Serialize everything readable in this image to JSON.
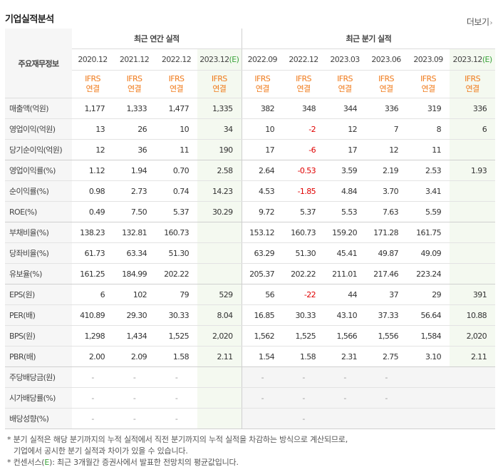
{
  "header": {
    "title": "기업실적분석",
    "more_label": "더보기"
  },
  "table": {
    "corner_label": "주요재무정보",
    "annual_group": "최근 연간 실적",
    "quarter_group": "최근 분기 실적",
    "periods": [
      "2020.12",
      "2021.12",
      "2022.12",
      "2023.12",
      "2022.09",
      "2022.12",
      "2023.03",
      "2023.06",
      "2023.09",
      "2023.12"
    ],
    "estimate_mark": "(E)",
    "ifrs_line1": "IFRS",
    "ifrs_line2": "연결",
    "rows": [
      {
        "label": "매출액(억원)",
        "values": [
          "1,177",
          "1,333",
          "1,477",
          "1,335",
          "382",
          "348",
          "344",
          "336",
          "319",
          "336"
        ]
      },
      {
        "label": "영업이익(억원)",
        "values": [
          "13",
          "26",
          "10",
          "34",
          "10",
          "-2",
          "12",
          "7",
          "8",
          "6"
        ]
      },
      {
        "label": "당기순이익(억원)",
        "values": [
          "12",
          "36",
          "11",
          "190",
          "17",
          "-6",
          "17",
          "12",
          "11",
          ""
        ]
      },
      {
        "label": "영업이익률(%)",
        "values": [
          "1.12",
          "1.94",
          "0.70",
          "2.58",
          "2.64",
          "-0.53",
          "3.59",
          "2.19",
          "2.53",
          "1.93"
        ]
      },
      {
        "label": "순이익률(%)",
        "values": [
          "0.98",
          "2.73",
          "0.74",
          "14.23",
          "4.53",
          "-1.85",
          "4.84",
          "3.70",
          "3.41",
          ""
        ]
      },
      {
        "label": "ROE(%)",
        "values": [
          "0.49",
          "7.50",
          "5.37",
          "30.29",
          "9.72",
          "5.37",
          "5.53",
          "7.63",
          "5.59",
          ""
        ]
      },
      {
        "label": "부채비율(%)",
        "values": [
          "138.23",
          "132.81",
          "160.73",
          "",
          "153.12",
          "160.73",
          "159.20",
          "171.28",
          "161.75",
          ""
        ]
      },
      {
        "label": "당좌비율(%)",
        "values": [
          "61.73",
          "63.34",
          "51.30",
          "",
          "63.29",
          "51.30",
          "45.41",
          "49.87",
          "49.09",
          ""
        ]
      },
      {
        "label": "유보율(%)",
        "values": [
          "161.25",
          "184.99",
          "202.22",
          "",
          "205.37",
          "202.22",
          "211.01",
          "217.46",
          "223.24",
          ""
        ]
      },
      {
        "label": "EPS(원)",
        "values": [
          "6",
          "102",
          "79",
          "529",
          "56",
          "-22",
          "44",
          "37",
          "29",
          "391"
        ]
      },
      {
        "label": "PER(배)",
        "values": [
          "410.89",
          "29.30",
          "30.33",
          "8.04",
          "16.85",
          "30.33",
          "43.10",
          "37.33",
          "56.64",
          "10.88"
        ]
      },
      {
        "label": "BPS(원)",
        "values": [
          "1,298",
          "1,434",
          "1,525",
          "2,020",
          "1,562",
          "1,525",
          "1,566",
          "1,556",
          "1,584",
          "2,020"
        ]
      },
      {
        "label": "PBR(배)",
        "values": [
          "2.00",
          "2.09",
          "1.58",
          "2.11",
          "1.54",
          "1.58",
          "2.31",
          "2.75",
          "3.10",
          "2.11"
        ]
      },
      {
        "label": "주당배당금(원)",
        "values": [
          "-",
          "-",
          "-",
          "",
          "-",
          "-",
          "-",
          "-",
          "",
          ""
        ]
      },
      {
        "label": "시가배당률(%)",
        "values": [
          "-",
          "-",
          "-",
          "",
          "-",
          "-",
          "-",
          "-",
          "",
          ""
        ]
      },
      {
        "label": "배당성향(%)",
        "values": [
          "-",
          "-",
          "-",
          "",
          "",
          "-",
          "",
          "",
          "",
          ""
        ]
      }
    ]
  },
  "notes": {
    "line1": "* 분기 실적은 해당 분기까지의 누적 실적에서 직전 분기까지의 누적 실적을 차감하는 방식으로 계산되므로,",
    "line2": "기업에서 공시한 분기 실적과 차이가 있을 수 있습니다.",
    "line3_a": "* 컨센서스(",
    "line3_e": "E",
    "line3_b": "): 최근 3개월간 증권사에서 발표한 전망치의 평균값입니다."
  }
}
